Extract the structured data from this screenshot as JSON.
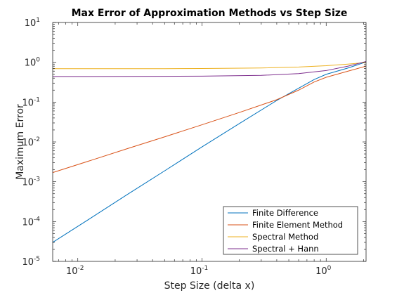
{
  "chart_data": {
    "type": "line",
    "title": "Max Error of Approximation Methods vs Step Size",
    "xlabel": "Step Size (delta x)",
    "ylabel": "Maximum Error",
    "xscale": "log",
    "yscale": "log",
    "xlim": [
      0.00628,
      2.094
    ],
    "ylim": [
      1e-05,
      10
    ],
    "x_ticks": [
      {
        "value": 0.01,
        "base": "10",
        "exp": "-2"
      },
      {
        "value": 0.1,
        "base": "10",
        "exp": "-1"
      },
      {
        "value": 1,
        "base": "10",
        "exp": "0"
      }
    ],
    "y_ticks": [
      {
        "value": 1e-05,
        "base": "10",
        "exp": "-5"
      },
      {
        "value": 0.0001,
        "base": "10",
        "exp": "-4"
      },
      {
        "value": 0.001,
        "base": "10",
        "exp": "-3"
      },
      {
        "value": 0.01,
        "base": "10",
        "exp": "-2"
      },
      {
        "value": 0.1,
        "base": "10",
        "exp": "-1"
      },
      {
        "value": 1,
        "base": "10",
        "exp": "0"
      },
      {
        "value": 10,
        "base": "10",
        "exp": "1"
      }
    ],
    "legend_position": "bottom-right",
    "grid": false,
    "series": [
      {
        "name": "Finite Difference",
        "color": "#0072BD",
        "x": [
          0.00628,
          0.0126,
          0.0251,
          0.0503,
          0.1,
          0.2,
          0.4,
          0.8,
          1.0,
          1.5,
          2.094
        ],
        "y": [
          3e-05,
          0.00012,
          0.00048,
          0.0019,
          0.0075,
          0.029,
          0.11,
          0.37,
          0.5,
          0.72,
          1.02
        ]
      },
      {
        "name": "Finite Element Method",
        "color": "#D95319",
        "x": [
          0.00628,
          0.0126,
          0.0251,
          0.0503,
          0.1,
          0.2,
          0.4,
          0.6,
          0.8,
          1.0,
          1.5,
          2.094
        ],
        "y": [
          0.0017,
          0.0034,
          0.0068,
          0.0135,
          0.027,
          0.055,
          0.115,
          0.2,
          0.32,
          0.42,
          0.6,
          0.8
        ]
      },
      {
        "name": "Spectral Method",
        "color": "#EDB120",
        "x": [
          0.00628,
          0.01,
          0.05,
          0.1,
          0.3,
          0.6,
          1.0,
          1.5,
          2.094
        ],
        "y": [
          0.69,
          0.69,
          0.69,
          0.7,
          0.72,
          0.76,
          0.82,
          0.9,
          0.99
        ]
      },
      {
        "name": "Spectral + Hann",
        "color": "#7E2F8E",
        "x": [
          0.00628,
          0.01,
          0.05,
          0.1,
          0.3,
          0.6,
          1.0,
          1.5,
          2.094
        ],
        "y": [
          0.44,
          0.44,
          0.445,
          0.45,
          0.47,
          0.52,
          0.62,
          0.8,
          1.05
        ]
      }
    ]
  }
}
